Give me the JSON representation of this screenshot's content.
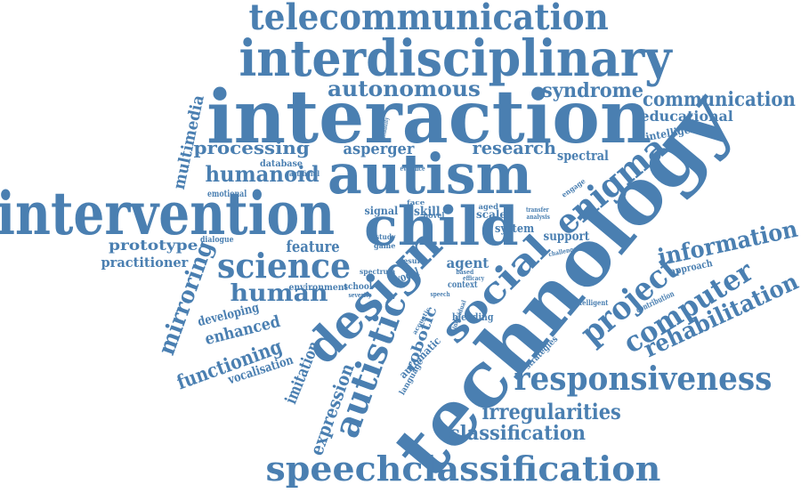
{
  "color": "#4a7fb1",
  "words": [
    {
      "text": "telecommunication"
    },
    {
      "text": "interdisciplinary"
    },
    {
      "text": "autonomous"
    },
    {
      "text": "syndrome"
    },
    {
      "text": "communication"
    },
    {
      "text": "interaction"
    },
    {
      "text": "educational"
    },
    {
      "text": "multimedia"
    },
    {
      "text": "intelligence"
    },
    {
      "text": "processing"
    },
    {
      "text": "asperger"
    },
    {
      "text": "research"
    },
    {
      "text": "spectral"
    },
    {
      "text": "humanoid"
    },
    {
      "text": "autism"
    },
    {
      "text": "enigma"
    },
    {
      "text": "technology"
    },
    {
      "text": "intervention"
    },
    {
      "text": "child"
    },
    {
      "text": "prototype"
    },
    {
      "text": "feature"
    },
    {
      "text": "information"
    },
    {
      "text": "practitioner"
    },
    {
      "text": "science"
    },
    {
      "text": "agent"
    },
    {
      "text": "design"
    },
    {
      "text": "social"
    },
    {
      "text": "project"
    },
    {
      "text": "computer"
    },
    {
      "text": "human"
    },
    {
      "text": "mirroring"
    },
    {
      "text": "autistic"
    },
    {
      "text": "robotic"
    },
    {
      "text": "enhanced"
    },
    {
      "text": "developing"
    },
    {
      "text": "rehabilitation"
    },
    {
      "text": "functioning"
    },
    {
      "text": "imitation"
    },
    {
      "text": "responsiveness"
    },
    {
      "text": "vocalisation"
    },
    {
      "text": "expression"
    },
    {
      "text": "irregularities"
    },
    {
      "text": "classification"
    },
    {
      "text": "speechclassification"
    },
    {
      "text": "emotional"
    },
    {
      "text": "database"
    },
    {
      "text": "artificial"
    },
    {
      "text": "dialogue"
    },
    {
      "text": "signal"
    },
    {
      "text": "skill"
    },
    {
      "text": "scale"
    },
    {
      "text": "system"
    },
    {
      "text": "support"
    },
    {
      "text": "environment"
    },
    {
      "text": "school"
    },
    {
      "text": "vocal"
    },
    {
      "text": "study"
    },
    {
      "text": "game"
    },
    {
      "text": "spectrum"
    },
    {
      "text": "severity"
    },
    {
      "text": "context"
    },
    {
      "text": "blending"
    },
    {
      "text": "automatic"
    },
    {
      "text": "strategies"
    },
    {
      "text": "approach"
    },
    {
      "text": "contribution"
    },
    {
      "text": "intelligent"
    },
    {
      "text": "challenge"
    },
    {
      "text": "engage"
    },
    {
      "text": "transfer"
    },
    {
      "text": "analysis"
    },
    {
      "text": "result"
    },
    {
      "text": "novel"
    },
    {
      "text": "face"
    },
    {
      "text": "evidence"
    },
    {
      "text": "language"
    },
    {
      "text": "acoustic"
    },
    {
      "text": "efficacy"
    },
    {
      "text": "based"
    },
    {
      "text": "aged"
    },
    {
      "text": "individual"
    },
    {
      "text": "speech"
    },
    {
      "text": "suitability"
    }
  ]
}
